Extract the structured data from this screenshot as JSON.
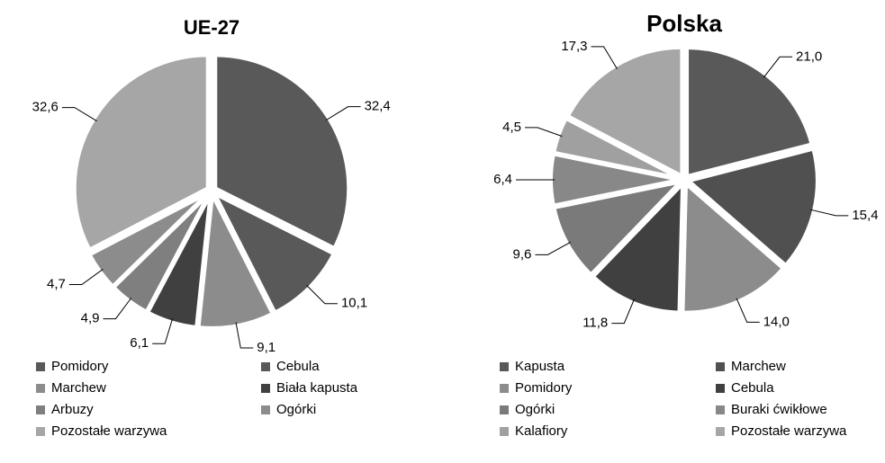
{
  "chart_data": [
    {
      "type": "pie",
      "title": "UE-27",
      "categories": [
        "Pomidory",
        "Cebula",
        "Marchew",
        "Biała kapusta",
        "Arbuzy",
        "Ogórki",
        "Pozostałe warzywa"
      ],
      "values": [
        32.4,
        10.1,
        9.1,
        6.1,
        4.9,
        4.7,
        32.6
      ],
      "value_labels": [
        "32,4",
        "10,1",
        "9,1",
        "6,1",
        "4,9",
        "4,7",
        "32,6"
      ],
      "colors": [
        "#595959",
        "#595959",
        "#8c8c8c",
        "#404040",
        "#7f7f7f",
        "#8c8c8c",
        "#a6a6a6"
      ]
    },
    {
      "type": "pie",
      "title": "Polska",
      "categories": [
        "Kapusta",
        "Marchew",
        "Pomidory",
        "Cebula",
        "Ogórki",
        "Buraki ćwikłowe",
        "Kalafiory",
        "Pozostałe warzywa"
      ],
      "values": [
        21.0,
        15.4,
        14.0,
        11.8,
        9.6,
        6.4,
        4.5,
        17.3
      ],
      "value_labels": [
        "21,0",
        "15,4",
        "14,0",
        "11,8",
        "9,6",
        "6,4",
        "4,5",
        "17,3"
      ],
      "colors": [
        "#595959",
        "#505050",
        "#8c8c8c",
        "#404040",
        "#7a7a7a",
        "#888888",
        "#a0a0a0",
        "#a6a6a6"
      ]
    }
  ]
}
